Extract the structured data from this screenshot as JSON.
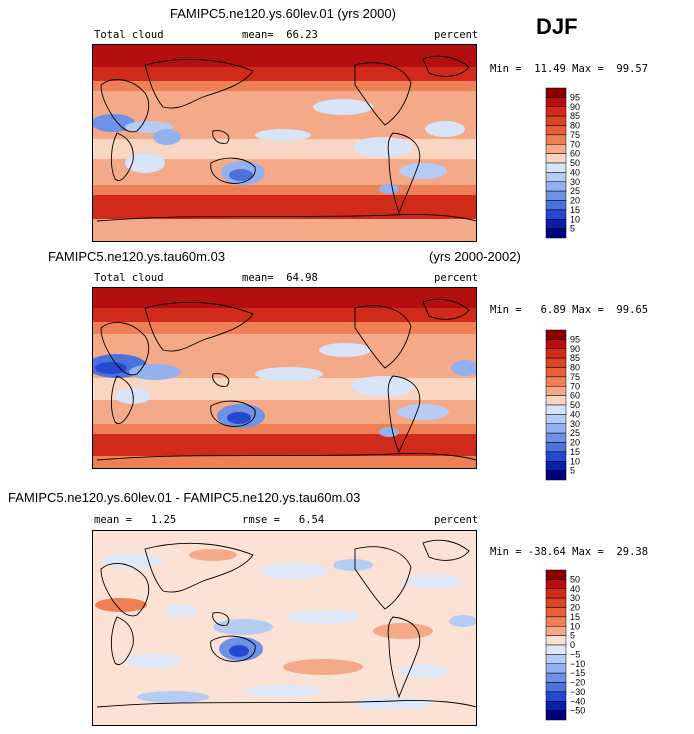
{
  "season": "DJF",
  "panels": [
    {
      "title": "FAMIPC5.ne120.ys.60lev.01 (yrs 2000)",
      "title_right": "",
      "variable": "Total cloud",
      "stat": "mean=  66.23",
      "stat2": "",
      "units": "percent",
      "minmax": "Min =  11.49 Max =  99.57"
    },
    {
      "title": "FAMIPC5.ne120.ys.tau60m.03",
      "title_right": "(yrs 2000-2002)",
      "variable": "Total cloud",
      "stat": "mean=  64.98",
      "stat2": "",
      "units": "percent",
      "minmax": "Min =   6.89 Max =  99.65"
    },
    {
      "title": "FAMIPC5.ne120.ys.60lev.01 - FAMIPC5.ne120.ys.tau60m.03",
      "title_right": "",
      "variable": "mean =   1.25",
      "stat": "rmse =   6.54",
      "stat2": "",
      "units": "percent",
      "minmax": "Min = -38.64 Max =  29.38"
    }
  ],
  "colorbars": [
    {
      "labels": [
        "95",
        "90",
        "85",
        "80",
        "75",
        "70",
        "60",
        "50",
        "40",
        "30",
        "25",
        "20",
        "15",
        "10",
        "5"
      ],
      "colors": [
        "#8b0000",
        "#b40f0f",
        "#d02a1a",
        "#dc4424",
        "#e5603a",
        "#ee8058",
        "#f4a988",
        "#f8d6c2",
        "#d8e4f8",
        "#b6ccf4",
        "#93b1ee",
        "#6e92e6",
        "#4a72dd",
        "#2548cf",
        "#0a1ea8",
        "#000080"
      ]
    },
    {
      "labels": [
        "95",
        "90",
        "85",
        "80",
        "75",
        "70",
        "60",
        "50",
        "40",
        "30",
        "25",
        "20",
        "15",
        "10",
        "5"
      ],
      "colors": [
        "#8b0000",
        "#b40f0f",
        "#d02a1a",
        "#dc4424",
        "#e5603a",
        "#ee8058",
        "#f4a988",
        "#f8d6c2",
        "#d8e4f8",
        "#b6ccf4",
        "#93b1ee",
        "#6e92e6",
        "#4a72dd",
        "#2548cf",
        "#0a1ea8",
        "#000080"
      ]
    },
    {
      "labels": [
        "50",
        "40",
        "30",
        "20",
        "15",
        "10",
        "5",
        "0",
        "−5",
        "−10",
        "−15",
        "−20",
        "−30",
        "−40",
        "−50"
      ],
      "colors": [
        "#8b0000",
        "#b40f0f",
        "#d02a1a",
        "#dc4424",
        "#e5603a",
        "#ee8058",
        "#f4a988",
        "#fbe2d4",
        "#dfe8f8",
        "#b6ccf4",
        "#93b1ee",
        "#6e92e6",
        "#4a72dd",
        "#2548cf",
        "#0a1ea8",
        "#000080"
      ]
    }
  ],
  "chart_data": [
    {
      "type": "heatmap",
      "title": "FAMIPC5.ne120.ys.60lev.01 (yrs 2000)",
      "variable": "Total cloud",
      "units": "percent",
      "mean": 66.23,
      "min": 11.49,
      "max": 99.57,
      "levels": [
        5,
        10,
        15,
        20,
        25,
        30,
        40,
        50,
        60,
        70,
        75,
        80,
        85,
        90,
        95
      ]
    },
    {
      "type": "heatmap",
      "title": "FAMIPC5.ne120.ys.tau60m.03",
      "years": "2000-2002",
      "variable": "Total cloud",
      "units": "percent",
      "mean": 64.98,
      "min": 6.89,
      "max": 99.65,
      "levels": [
        5,
        10,
        15,
        20,
        25,
        30,
        40,
        50,
        60,
        70,
        75,
        80,
        85,
        90,
        95
      ]
    },
    {
      "type": "heatmap",
      "title": "FAMIPC5.ne120.ys.60lev.01 - FAMIPC5.ne120.ys.tau60m.03",
      "units": "percent",
      "mean": 1.25,
      "rmse": 6.54,
      "min": -38.64,
      "max": 29.38,
      "levels": [
        -50,
        -40,
        -30,
        -20,
        -15,
        -10,
        -5,
        0,
        5,
        10,
        15,
        20,
        30,
        40,
        50
      ]
    }
  ]
}
